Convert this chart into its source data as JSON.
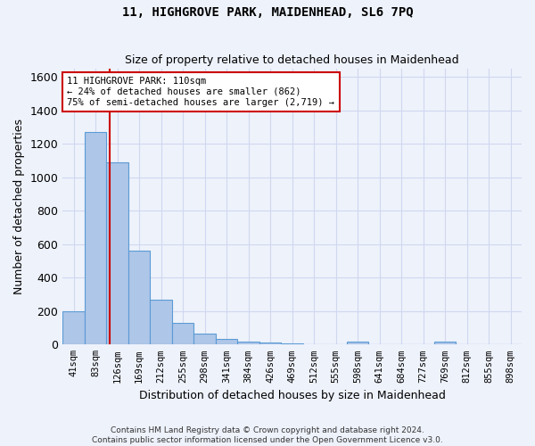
{
  "title": "11, HIGHGROVE PARK, MAIDENHEAD, SL6 7PQ",
  "subtitle": "Size of property relative to detached houses in Maidenhead",
  "xlabel": "Distribution of detached houses by size in Maidenhead",
  "ylabel": "Number of detached properties",
  "bar_labels": [
    "41sqm",
    "83sqm",
    "126sqm",
    "169sqm",
    "212sqm",
    "255sqm",
    "298sqm",
    "341sqm",
    "384sqm",
    "426sqm",
    "469sqm",
    "512sqm",
    "555sqm",
    "598sqm",
    "641sqm",
    "684sqm",
    "727sqm",
    "769sqm",
    "812sqm",
    "855sqm",
    "898sqm"
  ],
  "bar_values": [
    200,
    1270,
    1090,
    560,
    270,
    130,
    65,
    32,
    20,
    10,
    5,
    3,
    2,
    15,
    3,
    2,
    2,
    15,
    2,
    2,
    2
  ],
  "bar_color": "#aec6e8",
  "bar_edge_color": "#5b9bd5",
  "grid_color": "#d0d8f0",
  "background_color": "#eef2fb",
  "vline_color": "#cc0000",
  "vline_x": 1.65,
  "annotation_text": "11 HIGHGROVE PARK: 110sqm\n← 24% of detached houses are smaller (862)\n75% of semi-detached houses are larger (2,719) →",
  "annotation_box_color": "#ffffff",
  "annotation_box_edge": "#cc0000",
  "ylim": [
    0,
    1650
  ],
  "yticks": [
    0,
    200,
    400,
    600,
    800,
    1000,
    1200,
    1400,
    1600
  ],
  "footer1": "Contains HM Land Registry data © Crown copyright and database right 2024.",
  "footer2": "Contains public sector information licensed under the Open Government Licence v3.0."
}
